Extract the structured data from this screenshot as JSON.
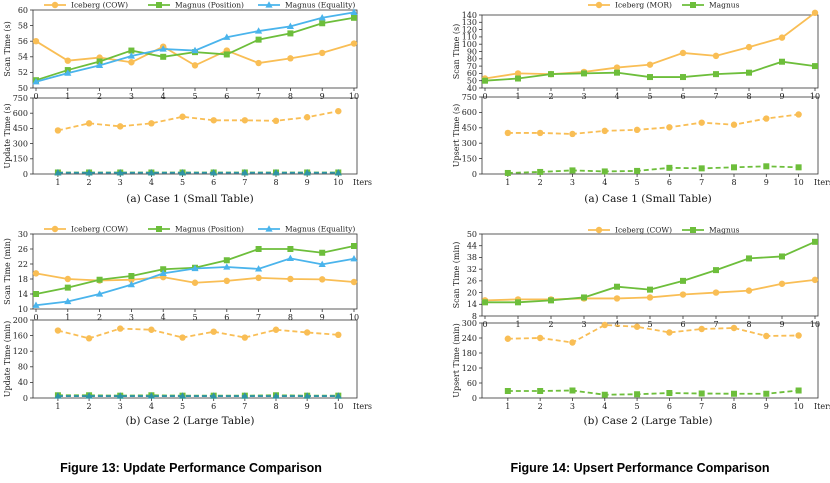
{
  "figures": [
    {
      "caption": "Figure 13: Update Performance Comparison"
    },
    {
      "caption": "Figure 14: Upsert Performance Comparison"
    }
  ],
  "colors": {
    "orange": "#F9BE55",
    "green": "#6DBE3B",
    "blue": "#4AB4EC",
    "teal": "#2E94A6"
  },
  "chart_data": [
    {
      "type": "line",
      "title": "(a) Case 1 (Small Table)",
      "top": {
        "ylabel": "Scan Time (s)",
        "ylim": [
          50,
          60
        ],
        "yticks": [
          50,
          52,
          54,
          56,
          58,
          60
        ],
        "x": [
          0,
          1,
          2,
          3,
          4,
          5,
          6,
          7,
          8,
          9,
          10
        ],
        "series": [
          {
            "name": "Iceberg (COW)",
            "color": "orange",
            "marker": "circle",
            "values": [
              56.0,
              53.5,
              53.9,
              53.3,
              55.3,
              52.9,
              54.8,
              53.2,
              53.8,
              54.5,
              55.7
            ]
          },
          {
            "name": "Magnus (Position)",
            "color": "green",
            "marker": "square",
            "values": [
              51.0,
              52.3,
              53.4,
              54.8,
              54.0,
              54.6,
              54.3,
              56.2,
              57.0,
              58.3,
              59.0
            ]
          },
          {
            "name": "Magnus (Equality)",
            "color": "blue",
            "marker": "triangle",
            "values": [
              50.8,
              51.9,
              52.9,
              54.1,
              55.0,
              54.8,
              56.5,
              57.3,
              57.9,
              59.0,
              59.7
            ]
          }
        ]
      },
      "bottom": {
        "ylabel": "Update Time (s)",
        "ylim": [
          0,
          750
        ],
        "yticks": [
          0,
          150,
          300,
          450,
          600,
          750
        ],
        "x": [
          1,
          2,
          3,
          4,
          5,
          6,
          7,
          8,
          9,
          10
        ],
        "xlabel": "Iters",
        "series": [
          {
            "name": "Iceberg (COW)",
            "color": "orange",
            "marker": "circle",
            "dashed": true,
            "values": [
              430,
              500,
              470,
              500,
              565,
              530,
              530,
              525,
              560,
              620
            ]
          },
          {
            "name": "Magnus (Position)",
            "color": "green",
            "marker": "square",
            "dashed": true,
            "values": [
              15,
              15,
              15,
              15,
              15,
              15,
              15,
              15,
              15,
              15
            ]
          },
          {
            "name": "Magnus (Equality)",
            "color": "teal",
            "marker": "triangle",
            "dashed": true,
            "values": [
              12,
              12,
              12,
              12,
              12,
              12,
              12,
              12,
              12,
              12
            ]
          }
        ]
      }
    },
    {
      "type": "line",
      "title": "(a) Case 1 (Small Table)",
      "top": {
        "ylabel": "Scan Time (s)",
        "ylim": [
          40,
          140
        ],
        "yticks": [
          40,
          50,
          60,
          70,
          80,
          90,
          100,
          110,
          120,
          130,
          140
        ],
        "x": [
          0,
          1,
          2,
          3,
          4,
          5,
          6,
          7,
          8,
          9,
          10
        ],
        "series": [
          {
            "name": "Iceberg (MOR)",
            "color": "orange",
            "marker": "circle",
            "values": [
              53,
              60,
              59,
              62,
              68,
              72,
              88,
              84,
              96,
              109,
              143
            ]
          },
          {
            "name": "Magnus",
            "color": "green",
            "marker": "square",
            "values": [
              50,
              53,
              59,
              60,
              61,
              55,
              55,
              59,
              61,
              76,
              70
            ]
          }
        ]
      },
      "bottom": {
        "ylabel": "Upsert Time (s)",
        "ylim": [
          0,
          750
        ],
        "yticks": [
          0,
          150,
          300,
          450,
          600,
          750
        ],
        "x": [
          1,
          2,
          3,
          4,
          5,
          6,
          7,
          8,
          9,
          10
        ],
        "xlabel": "Iters",
        "series": [
          {
            "name": "Iceberg (MOR)",
            "color": "orange",
            "marker": "circle",
            "dashed": true,
            "values": [
              400,
              400,
              390,
              420,
              430,
              455,
              500,
              480,
              540,
              580
            ]
          },
          {
            "name": "Magnus",
            "color": "green",
            "marker": "square",
            "dashed": true,
            "values": [
              10,
              20,
              35,
              25,
              30,
              60,
              55,
              65,
              75,
              65
            ]
          }
        ]
      }
    },
    {
      "type": "line",
      "title": "(b) Case 2 (Large Table)",
      "top": {
        "ylabel": "Scan Time (min)",
        "ylim": [
          10,
          30
        ],
        "yticks": [
          10,
          14,
          18,
          22,
          26,
          30
        ],
        "x": [
          0,
          1,
          2,
          3,
          4,
          5,
          6,
          7,
          8,
          9,
          10
        ],
        "series": [
          {
            "name": "Iceberg (COW)",
            "color": "orange",
            "marker": "circle",
            "values": [
              19.5,
              18.0,
              17.6,
              17.8,
              18.5,
              17.0,
              17.5,
              18.3,
              18.0,
              17.9,
              17.2
            ]
          },
          {
            "name": "Magnus (Position)",
            "color": "green",
            "marker": "square",
            "values": [
              14.0,
              15.7,
              17.8,
              18.8,
              20.6,
              21.0,
              23.0,
              26.0,
              26.0,
              25.0,
              26.8
            ]
          },
          {
            "name": "Magnus (Equality)",
            "color": "blue",
            "marker": "triangle",
            "values": [
              11.0,
              12.0,
              14.0,
              16.5,
              19.5,
              20.8,
              21.2,
              20.7,
              23.5,
              21.9,
              23.4
            ]
          }
        ]
      },
      "bottom": {
        "ylabel": "Update Time (min)",
        "ylim": [
          0,
          200
        ],
        "yticks": [
          0,
          40,
          80,
          120,
          160,
          200
        ],
        "x": [
          1,
          2,
          3,
          4,
          5,
          6,
          7,
          8,
          9,
          10
        ],
        "xlabel": "Iters",
        "series": [
          {
            "name": "Iceberg (COW)",
            "color": "orange",
            "marker": "circle",
            "dashed": true,
            "values": [
              173,
              153,
              178,
              175,
              155,
              170,
              155,
              175,
              168,
              162
            ]
          },
          {
            "name": "Magnus (Position)",
            "color": "green",
            "marker": "square",
            "dashed": true,
            "values": [
              7,
              7,
              6,
              7,
              6,
              6,
              6,
              7,
              6,
              6
            ]
          },
          {
            "name": "Magnus (Equality)",
            "color": "teal",
            "marker": "triangle",
            "dashed": true,
            "values": [
              5,
              5,
              5,
              5,
              5,
              5,
              5,
              5,
              5,
              5
            ]
          }
        ]
      }
    },
    {
      "type": "line",
      "title": "(b) Case 2 (Large Table)",
      "top": {
        "ylabel": "Scan Time (min)",
        "ylim": [
          8,
          50
        ],
        "yticks": [
          8,
          14,
          20,
          26,
          32,
          38,
          44,
          50
        ],
        "x": [
          0,
          1,
          2,
          3,
          4,
          5,
          6,
          7,
          8,
          9,
          10
        ],
        "series": [
          {
            "name": "Iceberg (COW)",
            "color": "orange",
            "marker": "circle",
            "values": [
              16.0,
              16.5,
              16.5,
              17.0,
              17.0,
              17.5,
              19.0,
              20.0,
              21.0,
              24.5,
              26.5
            ]
          },
          {
            "name": "Magnus",
            "color": "green",
            "marker": "square",
            "values": [
              15.0,
              15.0,
              16.0,
              17.5,
              23.0,
              21.5,
              26.0,
              31.5,
              37.5,
              38.5,
              46.0
            ]
          }
        ]
      },
      "bottom": {
        "ylabel": "Upsert Time (min)",
        "ylim": [
          0,
          300
        ],
        "yticks": [
          0,
          60,
          120,
          180,
          240,
          300
        ],
        "x": [
          1,
          2,
          3,
          4,
          5,
          6,
          7,
          8,
          9,
          10
        ],
        "xlabel": "Iters",
        "series": [
          {
            "name": "Iceberg (COW)",
            "color": "orange",
            "marker": "circle",
            "dashed": true,
            "values": [
              237,
              240,
              222,
              292,
              285,
              262,
              276,
              280,
              248,
              250
            ]
          },
          {
            "name": "Magnus",
            "color": "green",
            "marker": "square",
            "dashed": true,
            "values": [
              28,
              28,
              30,
              13,
              15,
              20,
              18,
              17,
              17,
              30
            ]
          }
        ]
      }
    }
  ]
}
